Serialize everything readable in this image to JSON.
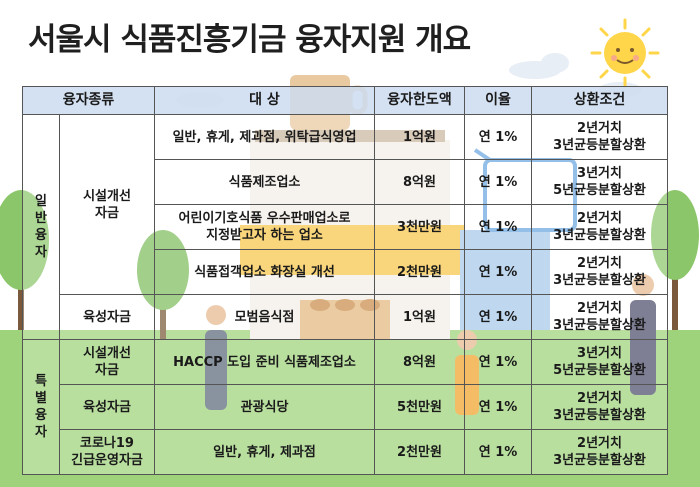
{
  "title": "서울시 식품진흥기금 융자지원 개요",
  "colors": {
    "sky": "#ffffff",
    "grass": "#9ed37b",
    "header": "#cddcf0",
    "border": "#555555",
    "sun": "#ffd54a"
  },
  "headers": {
    "type": "융자종류",
    "target": "대 상",
    "limit": "융자한도액",
    "rate": "이율",
    "repay": "상환조건"
  },
  "groups": {
    "general": [
      "일",
      "반",
      "융",
      "자"
    ],
    "special": [
      "특",
      "별",
      "융",
      "자"
    ]
  },
  "subtypes": {
    "facility_1": [
      "시설개선",
      "자금"
    ],
    "nurture_1": "육성자금",
    "facility_2": [
      "시설개선",
      "자금"
    ],
    "nurture_2": "육성자금",
    "corona": [
      "코로나19",
      "긴급운영자금"
    ]
  },
  "rows": [
    {
      "target": [
        "일반, 휴게, 제과점, 위탁급식영업"
      ],
      "limit": "1억원",
      "rate": "연 1%",
      "repay": [
        "2년거치",
        "3년균등분할상환"
      ]
    },
    {
      "target": [
        "식품제조업소"
      ],
      "limit": "8억원",
      "rate": "연 1%",
      "repay": [
        "3년거치",
        "5년균등분할상환"
      ]
    },
    {
      "target": [
        "어린이기호식품 우수판매업소로",
        "지정받고자 하는 업소"
      ],
      "limit": "3천만원",
      "rate": "연 1%",
      "repay": [
        "2년거치",
        "3년균등분할상환"
      ]
    },
    {
      "target": [
        "식품접객업소 화장실 개선"
      ],
      "limit": "2천만원",
      "rate": "연 1%",
      "repay": [
        "2년거치",
        "3년균등분할상환"
      ]
    },
    {
      "target": [
        "모범음식점"
      ],
      "limit": "1억원",
      "rate": "연 1%",
      "repay": [
        "2년거치",
        "3년균등분할상환"
      ]
    },
    {
      "target": [
        "HACCP 도입 준비 식품제조업소"
      ],
      "limit": "8억원",
      "rate": "연 1%",
      "repay": [
        "3년거치",
        "5년균등분할상환"
      ]
    },
    {
      "target": [
        "관광식당"
      ],
      "limit": "5천만원",
      "rate": "연 1%",
      "repay": [
        "2년거치",
        "3년균등분할상환"
      ]
    },
    {
      "target": [
        "일반, 휴게, 제과점"
      ],
      "limit": "2천만원",
      "rate": "연 1%",
      "repay": [
        "2년거치",
        "3년균등분할상환"
      ]
    }
  ]
}
